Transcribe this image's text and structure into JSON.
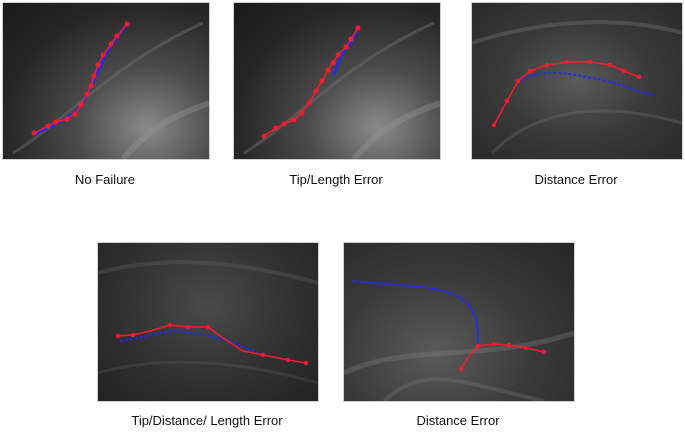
{
  "panels": [
    {
      "caption": "No Failure"
    },
    {
      "caption": "Tip/Length Error"
    },
    {
      "caption": "Distance Error"
    },
    {
      "caption": "Tip/Distance/ Length Error"
    },
    {
      "caption": "Distance Error"
    }
  ],
  "colors": {
    "prediction": "#ff1a2e",
    "ground_truth": "#1f2bff",
    "panel_bg": "#2a2a2a"
  }
}
